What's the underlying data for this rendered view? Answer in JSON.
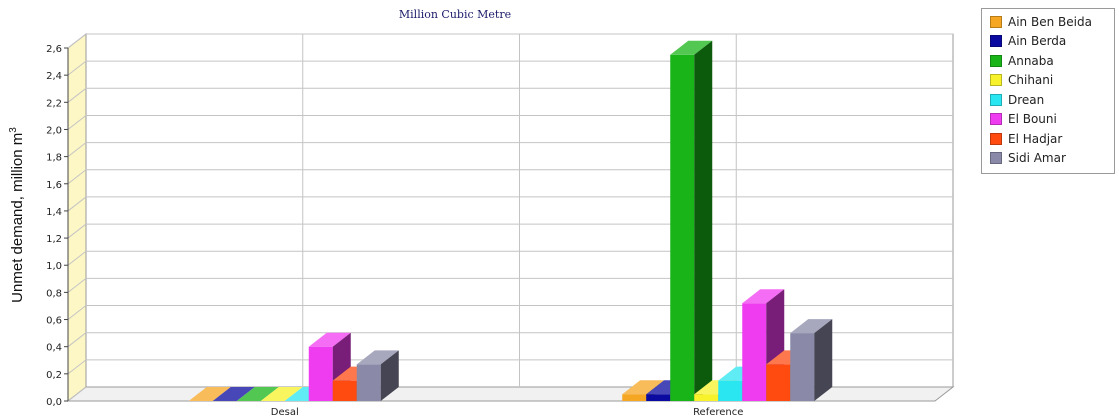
{
  "chart_data": {
    "type": "bar",
    "title": "Million Cubic Metre",
    "ylabel": "Unmet demand, million m",
    "ylabel_sup": "3",
    "xlabel": "",
    "categories": [
      "Desal",
      "Reference"
    ],
    "ylim": [
      0,
      2.6
    ],
    "yticks": [
      "0,0",
      "0,2",
      "0,4",
      "0,6",
      "0,8",
      "1,0",
      "1,2",
      "1,4",
      "1,6",
      "1,8",
      "2,0",
      "2,2",
      "2,4",
      "2,6"
    ],
    "grid": true,
    "legend_position": "top-right",
    "series": [
      {
        "name": "Ain Ben Beida",
        "color": "#f5a623",
        "values": [
          0.0,
          0.05
        ]
      },
      {
        "name": "Ain Berda",
        "color": "#0a0aa0",
        "values": [
          0.0,
          0.05
        ]
      },
      {
        "name": "Annaba",
        "color": "#18b418",
        "values": [
          0.0,
          2.55
        ]
      },
      {
        "name": "Chihani",
        "color": "#f7f22a",
        "values": [
          0.0,
          0.05
        ]
      },
      {
        "name": "Drean",
        "color": "#2ae6f0",
        "values": [
          0.0,
          0.15
        ]
      },
      {
        "name": "El Bouni",
        "color": "#f03cf0",
        "values": [
          0.4,
          0.72
        ]
      },
      {
        "name": "El Hadjar",
        "color": "#ff4a10",
        "values": [
          0.15,
          0.27
        ]
      },
      {
        "name": "Sidi Amar",
        "color": "#8a8aa8",
        "values": [
          0.27,
          0.5
        ]
      }
    ]
  }
}
